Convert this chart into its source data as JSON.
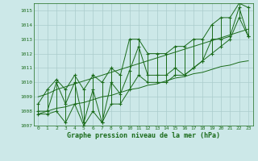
{
  "x": [
    0,
    1,
    2,
    3,
    4,
    5,
    6,
    7,
    8,
    9,
    10,
    11,
    12,
    13,
    14,
    15,
    16,
    17,
    18,
    19,
    20,
    21,
    22,
    23
  ],
  "y_main": [
    1008.0,
    1008.0,
    1010.0,
    1008.5,
    1010.0,
    1007.2,
    1009.5,
    1007.2,
    1010.0,
    1009.2,
    1010.8,
    1012.5,
    1010.5,
    1010.5,
    1010.5,
    1011.0,
    1010.5,
    1011.0,
    1011.5,
    1013.0,
    1013.0,
    1013.2,
    1015.2,
    1013.2
  ],
  "y_upper": [
    1008.5,
    1009.5,
    1010.2,
    1009.5,
    1010.5,
    1009.5,
    1010.5,
    1010.0,
    1011.0,
    1010.5,
    1013.0,
    1013.0,
    1012.0,
    1012.0,
    1012.0,
    1012.5,
    1012.5,
    1013.0,
    1013.0,
    1014.0,
    1014.5,
    1014.5,
    1015.5,
    1015.2
  ],
  "y_lower": [
    1007.8,
    1007.8,
    1008.0,
    1007.2,
    1008.5,
    1007.0,
    1008.0,
    1007.2,
    1008.5,
    1008.5,
    1009.5,
    1010.5,
    1010.0,
    1010.0,
    1010.0,
    1010.5,
    1010.5,
    1011.0,
    1011.5,
    1012.0,
    1012.5,
    1013.0,
    1014.5,
    1013.2
  ],
  "trend_lower": [
    1007.8,
    1008.0,
    1008.2,
    1008.3,
    1008.5,
    1008.6,
    1008.8,
    1009.0,
    1009.1,
    1009.3,
    1009.5,
    1009.6,
    1009.8,
    1009.9,
    1010.1,
    1010.3,
    1010.4,
    1010.6,
    1010.7,
    1010.9,
    1011.1,
    1011.2,
    1011.4,
    1011.5
  ],
  "trend_upper": [
    1009.0,
    1009.2,
    1009.5,
    1009.7,
    1009.9,
    1010.1,
    1010.3,
    1010.5,
    1010.7,
    1010.9,
    1011.1,
    1011.3,
    1011.5,
    1011.7,
    1011.9,
    1012.1,
    1012.3,
    1012.5,
    1012.7,
    1012.9,
    1013.1,
    1013.3,
    1013.5,
    1013.7
  ],
  "ylim": [
    1007.0,
    1015.5
  ],
  "yticks": [
    1007,
    1008,
    1009,
    1010,
    1011,
    1012,
    1013,
    1014,
    1015
  ],
  "xticks": [
    0,
    1,
    2,
    3,
    4,
    5,
    6,
    7,
    8,
    9,
    10,
    11,
    12,
    13,
    14,
    15,
    16,
    17,
    18,
    19,
    20,
    21,
    22,
    23
  ],
  "xlabel": "Graphe pression niveau de la mer (hPa)",
  "line_color": "#1a6b1a",
  "bg_color": "#cce8e8",
  "grid_color": "#aacccc",
  "marker": "+",
  "marker_size": 3,
  "line_width": 0.7
}
